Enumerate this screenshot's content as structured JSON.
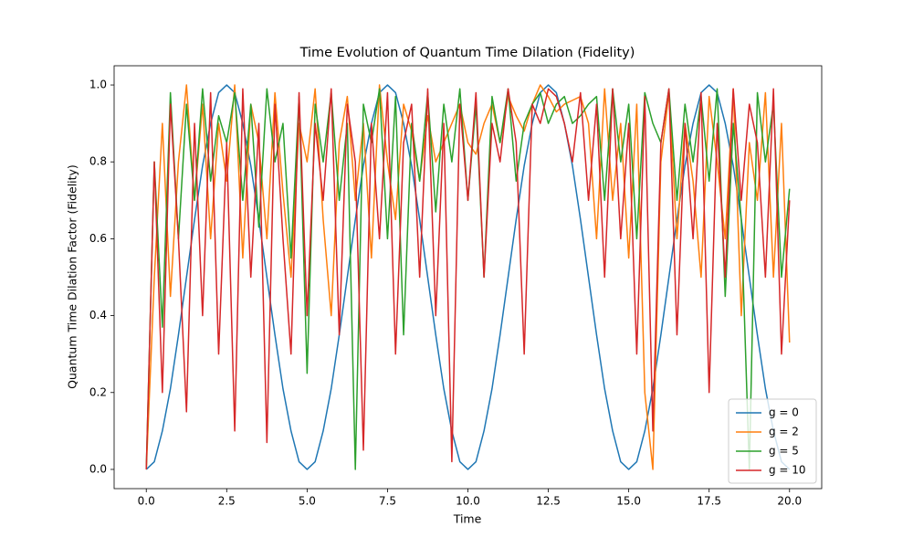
{
  "chart_data": {
    "type": "line",
    "title": "Time Evolution of Quantum Time Dilation (Fidelity)",
    "x_label": "Time",
    "y_label": "Quantum Time Dilation Factor (Fidelity)",
    "x": [
      0,
      0.25,
      0.5,
      0.75,
      1,
      1.25,
      1.5,
      1.75,
      2,
      2.25,
      2.5,
      2.75,
      3,
      3.25,
      3.5,
      3.75,
      4,
      4.25,
      4.5,
      4.75,
      5,
      5.25,
      5.5,
      5.75,
      6,
      6.25,
      6.5,
      6.75,
      7,
      7.25,
      7.5,
      7.75,
      8,
      8.25,
      8.5,
      8.75,
      9,
      9.25,
      9.5,
      9.75,
      10,
      10.25,
      10.5,
      10.75,
      11,
      11.25,
      11.5,
      11.75,
      12,
      12.25,
      12.5,
      12.75,
      13,
      13.25,
      13.5,
      13.75,
      14,
      14.25,
      14.5,
      14.75,
      15,
      15.25,
      15.5,
      15.75,
      16,
      16.25,
      16.5,
      16.75,
      17,
      17.25,
      17.5,
      17.75,
      18,
      18.25,
      18.5,
      18.75,
      19,
      19.25,
      19.5,
      19.75,
      20
    ],
    "series": [
      {
        "name": "g = 0",
        "color": "#1f77b4",
        "values": [
          0,
          0.02,
          0.1,
          0.21,
          0.35,
          0.5,
          0.65,
          0.79,
          0.9,
          0.98,
          1,
          0.98,
          0.9,
          0.79,
          0.65,
          0.5,
          0.35,
          0.21,
          0.1,
          0.02,
          0,
          0.02,
          0.1,
          0.21,
          0.35,
          0.5,
          0.65,
          0.79,
          0.9,
          0.98,
          1,
          0.98,
          0.9,
          0.79,
          0.65,
          0.5,
          0.35,
          0.21,
          0.1,
          0.02,
          0,
          0.02,
          0.1,
          0.21,
          0.35,
          0.5,
          0.65,
          0.79,
          0.9,
          0.98,
          1,
          0.98,
          0.9,
          0.79,
          0.65,
          0.5,
          0.35,
          0.21,
          0.1,
          0.02,
          0,
          0.02,
          0.1,
          0.21,
          0.35,
          0.5,
          0.65,
          0.79,
          0.9,
          0.98,
          1,
          0.98,
          0.9,
          0.79,
          0.65,
          0.5,
          0.35,
          0.21,
          0.1,
          0.02,
          0
        ]
      },
      {
        "name": "g = 2",
        "color": "#ff7f0e",
        "values": [
          0,
          0.5,
          0.9,
          0.45,
          0.8,
          1,
          0.7,
          0.95,
          0.6,
          0.9,
          0.75,
          1,
          0.55,
          0.95,
          0.85,
          0.6,
          0.98,
          0.72,
          0.5,
          0.9,
          0.8,
          0.99,
          0.65,
          0.4,
          0.85,
          0.97,
          0.7,
          0.9,
          0.55,
          1,
          0.8,
          0.65,
          0.95,
          0.88,
          0.75,
          0.92,
          0.8,
          0.85,
          0.9,
          0.95,
          0.85,
          0.82,
          0.9,
          0.95,
          0.85,
          0.97,
          0.92,
          0.88,
          0.95,
          1,
          0.97,
          0.93,
          0.95,
          0.96,
          0.97,
          0.9,
          0.6,
          0.99,
          0.7,
          0.9,
          0.55,
          0.95,
          0.2,
          0,
          0.8,
          0.98,
          0.6,
          0.9,
          0.75,
          0.5,
          0.97,
          0.8,
          0.6,
          0.99,
          0.4,
          0.85,
          0.7,
          0.98,
          0.5,
          0.9,
          0.33
        ]
      },
      {
        "name": "g = 5",
        "color": "#2ca02c",
        "values": [
          0,
          0.8,
          0.37,
          0.98,
          0.6,
          0.95,
          0.7,
          0.99,
          0.75,
          0.92,
          0.85,
          0.98,
          0.7,
          0.95,
          0.63,
          0.99,
          0.8,
          0.9,
          0.55,
          0.97,
          0.25,
          0.95,
          0.8,
          0.98,
          0.7,
          0.9,
          0,
          0.95,
          0.85,
          0.99,
          0.6,
          0.97,
          0.35,
          0.9,
          0.75,
          0.98,
          0.67,
          0.95,
          0.8,
          0.99,
          0.7,
          0.95,
          0.5,
          0.97,
          0.85,
          0.99,
          0.75,
          0.9,
          0.95,
          0.98,
          0.9,
          0.95,
          0.97,
          0.9,
          0.92,
          0.95,
          0.97,
          0.7,
          0.99,
          0.8,
          0.95,
          0.6,
          0.98,
          0.9,
          0.85,
          0.99,
          0.7,
          0.95,
          0.8,
          0.97,
          0.75,
          0.99,
          0.45,
          0.9,
          0.65,
          0,
          0.98,
          0.8,
          0.95,
          0.5,
          0.73
        ]
      },
      {
        "name": "g = 10",
        "color": "#d62728",
        "values": [
          0,
          0.8,
          0.2,
          0.95,
          0.6,
          0.15,
          0.9,
          0.4,
          0.98,
          0.3,
          0.85,
          0.1,
          0.99,
          0.5,
          0.9,
          0.07,
          0.95,
          0.6,
          0.3,
          0.98,
          0.4,
          0.9,
          0.7,
          0.99,
          0.35,
          0.95,
          0.8,
          0.05,
          0.9,
          0.6,
          0.98,
          0.3,
          0.85,
          0.95,
          0.5,
          0.99,
          0.4,
          0.9,
          0.02,
          0.95,
          0.7,
          0.98,
          0.5,
          0.9,
          0.8,
          0.99,
          0.85,
          0.3,
          0.95,
          0.9,
          0.99,
          0.97,
          0.9,
          0.8,
          0.98,
          0.7,
          0.95,
          0.5,
          0.99,
          0.6,
          0.9,
          0.3,
          0.97,
          0.1,
          0.85,
          0.99,
          0.35,
          0.9,
          0.6,
          0.98,
          0.2,
          0.9,
          0.5,
          0.99,
          0.7,
          0.95,
          0.85,
          0.5,
          0.99,
          0.3,
          0.7
        ]
      }
    ],
    "xlim": [
      -1,
      21
    ],
    "ylim": [
      -0.05,
      1.05
    ],
    "xticks": [
      {
        "value": 0,
        "label": "0.0"
      },
      {
        "value": 2.5,
        "label": "2.5"
      },
      {
        "value": 5,
        "label": "5.0"
      },
      {
        "value": 7.5,
        "label": "7.5"
      },
      {
        "value": 10,
        "label": "10.0"
      },
      {
        "value": 12.5,
        "label": "12.5"
      },
      {
        "value": 15,
        "label": "15.0"
      },
      {
        "value": 17.5,
        "label": "17.5"
      },
      {
        "value": 20,
        "label": "20.0"
      }
    ],
    "yticks": [
      {
        "value": 0,
        "label": "0.0"
      },
      {
        "value": 0.2,
        "label": "0.2"
      },
      {
        "value": 0.4,
        "label": "0.4"
      },
      {
        "value": 0.6,
        "label": "0.6"
      },
      {
        "value": 0.8,
        "label": "0.8"
      },
      {
        "value": 1,
        "label": "1.0"
      }
    ],
    "grid": false,
    "legend": "lower right"
  }
}
